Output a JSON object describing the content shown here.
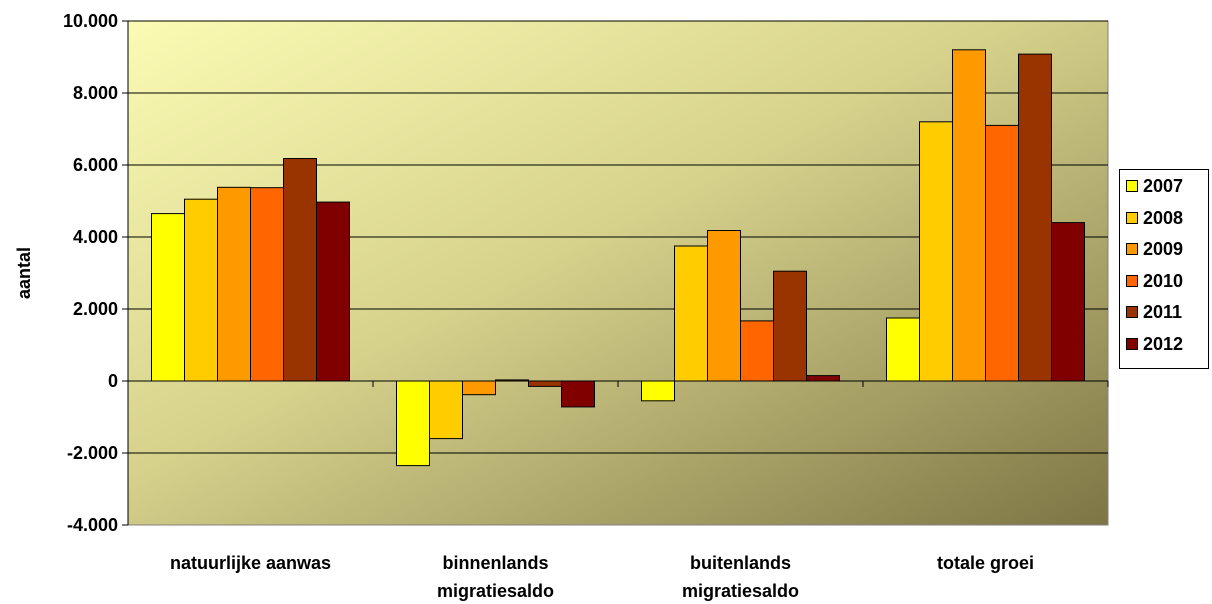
{
  "chart_data": {
    "type": "bar",
    "title": "",
    "xlabel": "",
    "ylabel": "aantal",
    "ylim": [
      -4000,
      10000
    ],
    "yticks": [
      -4000,
      -2000,
      0,
      2000,
      4000,
      6000,
      8000,
      10000
    ],
    "ytick_labels": [
      "-4.000",
      "-2.000",
      "0",
      "2.000",
      "4.000",
      "6.000",
      "8.000",
      "10.000"
    ],
    "categories": [
      [
        "natuurlijke aanwas"
      ],
      [
        "binnenlands",
        "migratiesaldo"
      ],
      [
        "buitenlands",
        "migratiesaldo"
      ],
      [
        "totale groei"
      ]
    ],
    "series": [
      {
        "name": "2007",
        "color": "#FFFF00",
        "values": [
          4650,
          -2350,
          -550,
          1750
        ]
      },
      {
        "name": "2008",
        "color": "#FFCC00",
        "values": [
          5050,
          -1600,
          3750,
          7200
        ]
      },
      {
        "name": "2009",
        "color": "#FF9900",
        "values": [
          5380,
          -380,
          4180,
          9200
        ]
      },
      {
        "name": "2010",
        "color": "#FF6600",
        "values": [
          5370,
          30,
          1670,
          7100
        ]
      },
      {
        "name": "2011",
        "color": "#993300",
        "values": [
          6180,
          -150,
          3050,
          9080
        ]
      },
      {
        "name": "2012",
        "color": "#800000",
        "values": [
          4970,
          -720,
          150,
          4400
        ]
      }
    ],
    "grid": true,
    "legend_position": "right",
    "plot_background": "olive-yellow gradient"
  }
}
